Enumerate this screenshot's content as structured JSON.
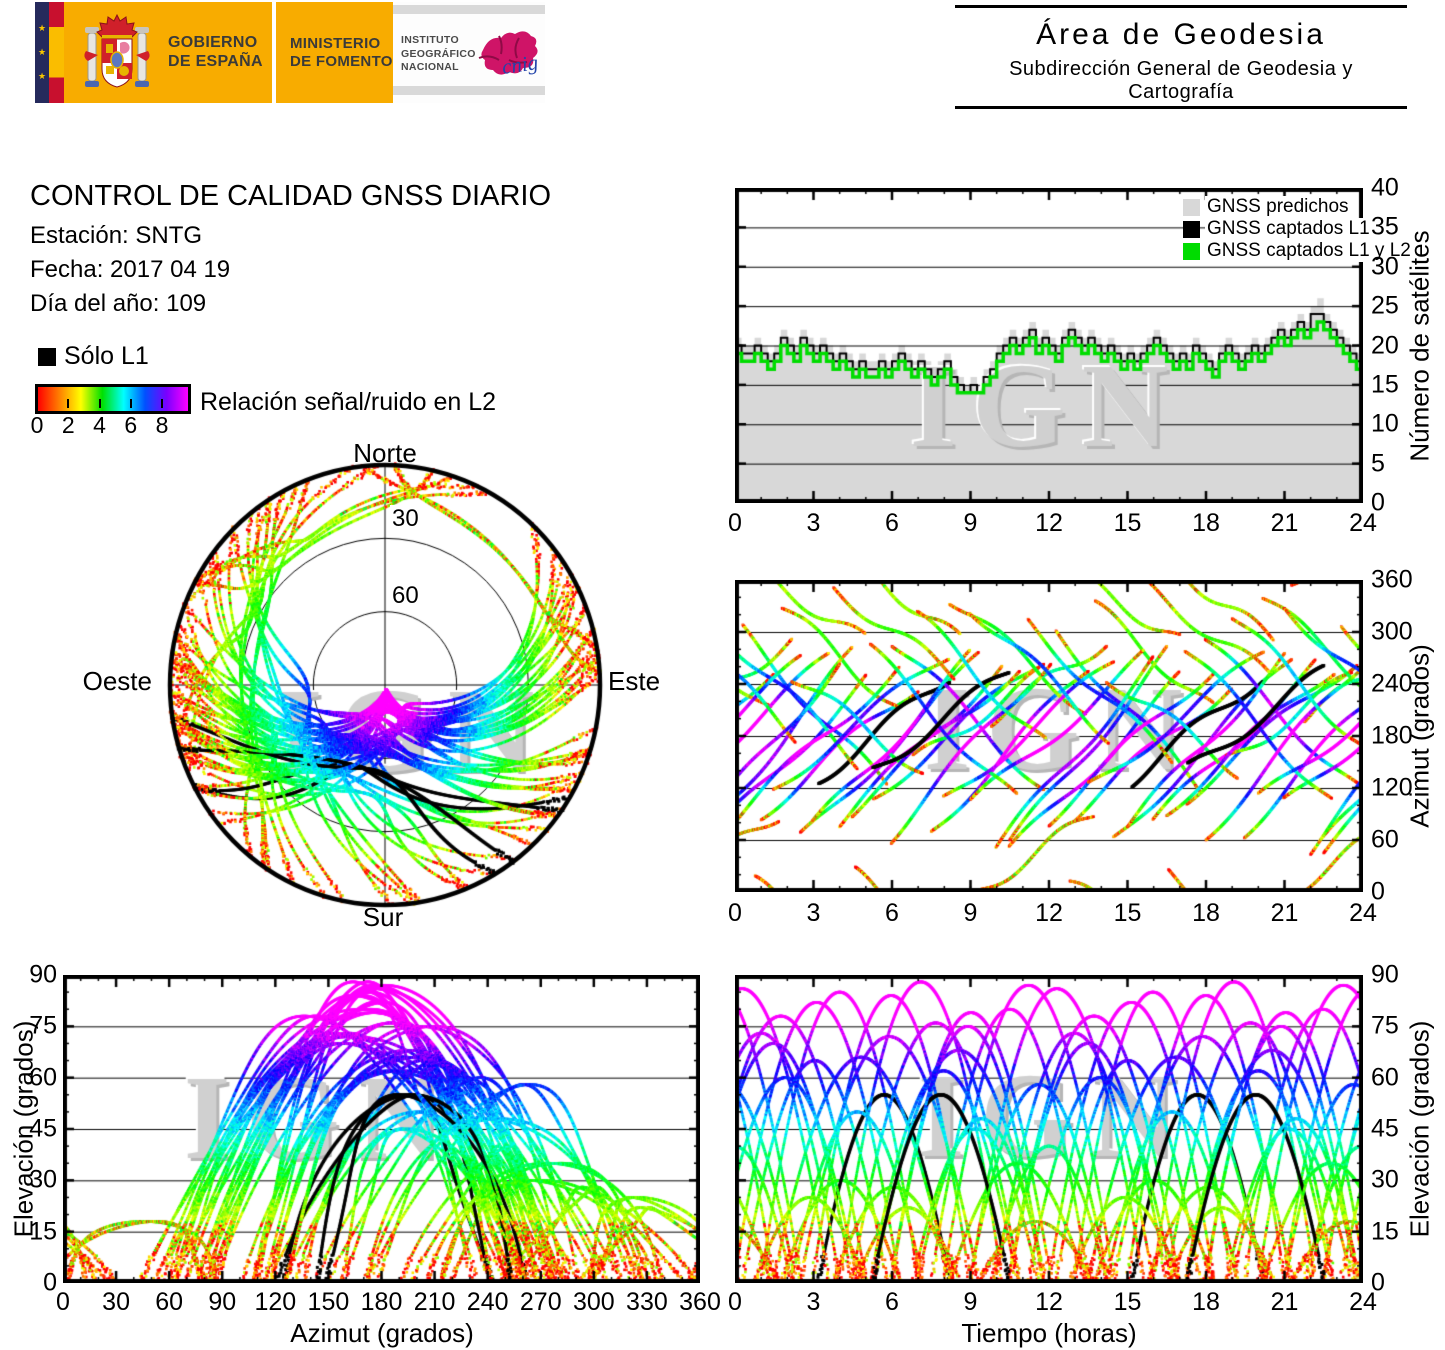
{
  "header": {
    "gobierno_1": "GOBIERNO",
    "gobierno_2": "DE ESPAÑA",
    "ministerio_1": "MINISTERIO",
    "ministerio_2": "DE FOMENTO",
    "instituto_1": "INSTITUTO",
    "instituto_2": "GEOGRÁFICO",
    "instituto_3": "NACIONAL",
    "cnig": "cnig",
    "area_title": "Área de Geodesia",
    "area_subtitle": "Subdirección General de Geodesia y Cartografía"
  },
  "report": {
    "title": "CONTROL DE CALIDAD GNSS DIARIO",
    "station": "Estación: SNTG",
    "date": "Fecha: 2017 04 19",
    "doy": "Día del año: 109"
  },
  "legend": {
    "solo_l1": "Sólo L1"
  },
  "watermark": "IGN",
  "skyplot": {
    "north": "Norte",
    "south": "Sur",
    "west": "Oeste",
    "east": "Este",
    "ring_labels": [
      "30",
      "60"
    ]
  },
  "chart_data": {
    "colormap_scale": {
      "label": "Relación señal/ruido en L2",
      "ticks": [
        0,
        2,
        4,
        6,
        8
      ],
      "range": [
        0,
        9.6
      ],
      "colors": [
        "#ff0000",
        "#ff8000",
        "#ffff00",
        "#00e000",
        "#00ffff",
        "#0050ff",
        "#7a00ff",
        "#ff00ff"
      ]
    },
    "satellite_count": {
      "type": "area",
      "xlabel": "",
      "ylabel": "Número de satélites",
      "xlim": [
        0,
        24
      ],
      "ylim": [
        0,
        40
      ],
      "xticks": [
        0,
        3,
        6,
        9,
        12,
        15,
        18,
        21,
        24
      ],
      "yticks": [
        0,
        5,
        10,
        15,
        20,
        25,
        30,
        35,
        40
      ],
      "step_hours": 0.25,
      "series": [
        {
          "name": "GNSS predichos",
          "color": "#d8d8d8",
          "style": "area",
          "values": [
            21,
            20,
            20,
            21,
            20,
            19,
            20,
            22,
            21,
            20,
            22,
            21,
            20,
            21,
            20,
            19,
            20,
            19,
            18,
            19,
            18,
            18,
            19,
            18,
            19,
            20,
            19,
            18,
            19,
            18,
            17,
            18,
            19,
            17,
            16,
            15,
            16,
            15,
            17,
            18,
            20,
            21,
            22,
            21,
            22,
            23,
            21,
            22,
            21,
            20,
            22,
            23,
            22,
            21,
            22,
            21,
            20,
            21,
            20,
            19,
            20,
            19,
            20,
            21,
            22,
            21,
            20,
            19,
            20,
            19,
            21,
            20,
            19,
            18,
            20,
            21,
            20,
            19,
            20,
            21,
            20,
            21,
            22,
            23,
            22,
            23,
            24,
            23,
            25,
            26,
            24,
            23,
            22,
            21,
            20,
            19,
            20
          ]
        },
        {
          "name": "GNSS captados L1",
          "color": "#000000",
          "style": "step-line",
          "values": [
            20,
            19,
            19,
            20,
            19,
            18,
            19,
            21,
            20,
            19,
            21,
            20,
            19,
            20,
            19,
            18,
            19,
            18,
            17,
            18,
            17,
            17,
            18,
            17,
            18,
            19,
            18,
            17,
            18,
            17,
            16,
            17,
            18,
            16,
            15,
            14,
            15,
            14,
            16,
            17,
            19,
            20,
            21,
            20,
            21,
            22,
            20,
            21,
            20,
            19,
            21,
            22,
            21,
            20,
            21,
            20,
            19,
            20,
            19,
            18,
            19,
            18,
            19,
            20,
            21,
            20,
            19,
            18,
            19,
            18,
            20,
            19,
            18,
            17,
            19,
            20,
            19,
            18,
            19,
            20,
            19,
            20,
            21,
            22,
            21,
            22,
            23,
            22,
            24,
            24,
            23,
            22,
            21,
            20,
            19,
            18,
            19
          ]
        },
        {
          "name": "GNSS captados L1 y L2",
          "color": "#00dc00",
          "style": "step-line",
          "values": [
            19,
            18,
            18,
            19,
            18,
            17,
            18,
            20,
            19,
            18,
            20,
            19,
            18,
            19,
            18,
            17,
            18,
            17,
            16,
            17,
            16,
            16,
            17,
            16,
            17,
            18,
            17,
            16,
            17,
            16,
            15,
            16,
            17,
            15,
            14,
            14,
            14,
            14,
            15,
            16,
            18,
            19,
            20,
            19,
            20,
            21,
            19,
            20,
            19,
            18,
            20,
            21,
            20,
            19,
            20,
            19,
            18,
            19,
            18,
            17,
            18,
            17,
            18,
            19,
            20,
            19,
            18,
            17,
            18,
            17,
            19,
            18,
            17,
            16,
            18,
            19,
            18,
            17,
            18,
            19,
            18,
            19,
            20,
            21,
            20,
            21,
            22,
            21,
            22,
            23,
            22,
            21,
            20,
            19,
            18,
            17,
            18
          ]
        }
      ]
    },
    "satellite_passes": {
      "type": "scatter-tracks",
      "description": "Approximate GNSS satellite passes; each pass drawn twice (second at +repeat_offset_hours). Point color encodes L2 signal/noise (red=low ... magenta=high); l1_only=1 passes are black.",
      "columns": [
        "rise_hour",
        "duration_hours",
        "rise_azimuth_deg",
        "azimuth_change_deg",
        "peak_elevation_deg",
        "l1_only"
      ],
      "repeat_offset_hours": 11.97,
      "passes": [
        [
          -1.5,
          6.5,
          45,
          200,
          78,
          0
        ],
        [
          0.3,
          5.5,
          300,
          -180,
          65,
          0
        ],
        [
          1.0,
          6.0,
          90,
          150,
          85,
          0
        ],
        [
          1.8,
          4.5,
          330,
          -120,
          30,
          0
        ],
        [
          2.5,
          6.8,
          60,
          210,
          72,
          0
        ],
        [
          3.2,
          5.0,
          130,
          120,
          55,
          1
        ],
        [
          4.0,
          6.2,
          80,
          180,
          88,
          0
        ],
        [
          4.6,
          4.0,
          20,
          -90,
          22,
          0
        ],
        [
          5.3,
          6.5,
          110,
          160,
          68,
          0
        ],
        [
          6.0,
          5.8,
          290,
          -170,
          75,
          0
        ],
        [
          6.8,
          4.8,
          150,
          100,
          45,
          0
        ],
        [
          7.5,
          6.0,
          70,
          190,
          80,
          0
        ],
        [
          8.2,
          5.2,
          340,
          -130,
          35,
          0
        ],
        [
          9.0,
          6.6,
          100,
          170,
          86,
          0
        ],
        [
          9.3,
          4.4,
          0,
          90,
          18,
          0
        ],
        [
          9.8,
          4.4,
          200,
          90,
          40,
          0
        ],
        [
          10.5,
          6.0,
          55,
          220,
          70,
          0
        ],
        [
          11.2,
          5.5,
          310,
          -160,
          60,
          0
        ],
        [
          12.0,
          6.3,
          85,
          175,
          82,
          0
        ],
        [
          12.8,
          4.2,
          10,
          -80,
          25,
          0
        ],
        [
          13.5,
          6.7,
          120,
          155,
          66,
          0
        ],
        [
          14.2,
          5.0,
          250,
          -110,
          50,
          0
        ],
        [
          15.0,
          6.0,
          75,
          195,
          84,
          0
        ],
        [
          15.8,
          4.6,
          350,
          -100,
          28,
          0
        ],
        [
          16.5,
          6.4,
          95,
          165,
          76,
          0
        ],
        [
          17.2,
          5.6,
          280,
          -175,
          62,
          0
        ],
        [
          17.3,
          5.2,
          140,
          115,
          55,
          1
        ],
        [
          18.0,
          6.1,
          65,
          205,
          79,
          0
        ],
        [
          19.0,
          4.9,
          320,
          -150,
          48,
          0
        ],
        [
          20.0,
          6.5,
          105,
          160,
          87,
          0
        ],
        [
          21.0,
          5.3,
          330,
          -150,
          58,
          0
        ],
        [
          22.0,
          6.0,
          50,
          215,
          73,
          0
        ]
      ]
    },
    "charts": [
      {
        "id": "skyplot",
        "type": "polar-skyplot",
        "rings_deg": [
          30,
          60
        ],
        "labels": {
          "n": "Norte",
          "s": "Sur",
          "w": "Oeste",
          "e": "Este"
        }
      },
      {
        "id": "azimuth-time",
        "type": "scatter",
        "xlabel": "",
        "ylabel": "Azimut (grados)",
        "xlim": [
          0,
          24
        ],
        "ylim": [
          0,
          360
        ],
        "xticks": [
          0,
          3,
          6,
          9,
          12,
          15,
          18,
          21,
          24
        ],
        "yticks": [
          0,
          60,
          120,
          180,
          240,
          300,
          360
        ],
        "x_minor": 1,
        "y_minor": 20
      },
      {
        "id": "elev-azimuth",
        "type": "scatter",
        "xlabel": "Azimut (grados)",
        "ylabel": "Elevación (grados)",
        "xlim": [
          0,
          360
        ],
        "ylim": [
          0,
          90
        ],
        "xticks": [
          0,
          30,
          60,
          90,
          120,
          150,
          180,
          210,
          240,
          270,
          300,
          330,
          360
        ],
        "yticks": [
          0,
          15,
          30,
          45,
          60,
          75,
          90
        ],
        "x_minor": 10,
        "y_minor": 5
      },
      {
        "id": "elev-time",
        "type": "scatter",
        "xlabel": "Tiempo (horas)",
        "ylabel": "Elevación (grados)",
        "xlim": [
          0,
          24
        ],
        "ylim": [
          0,
          90
        ],
        "xticks": [
          0,
          3,
          6,
          9,
          12,
          15,
          18,
          21,
          24
        ],
        "yticks": [
          0,
          15,
          30,
          45,
          60,
          75,
          90
        ],
        "x_minor": 1,
        "y_minor": 5
      }
    ]
  }
}
